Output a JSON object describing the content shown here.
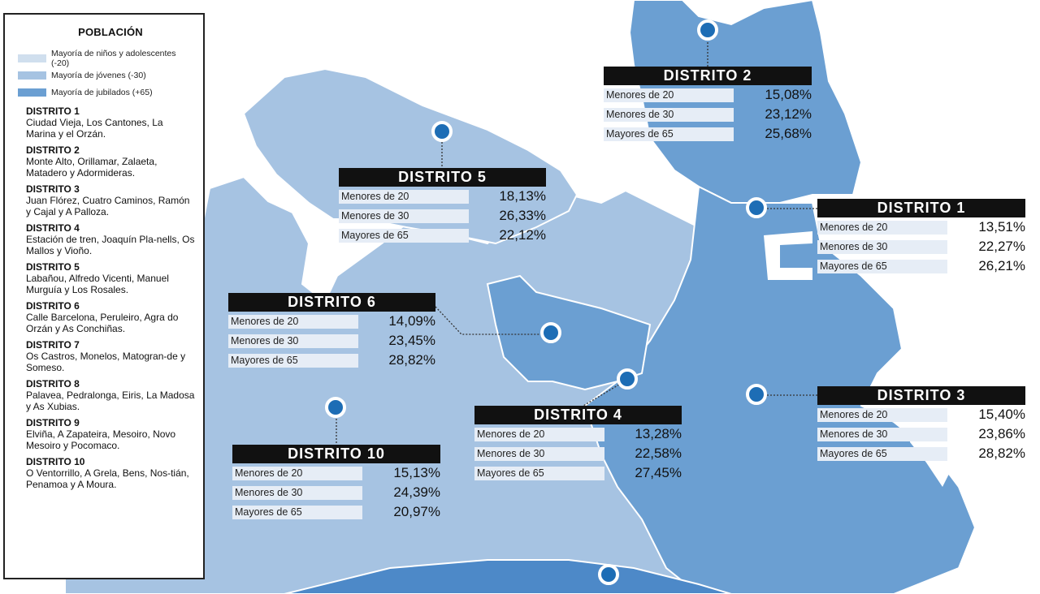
{
  "colors": {
    "kids": "#d0dfee",
    "youth": "#a6c3e2",
    "seniors": "#6b9fd2",
    "dark": "#4d89c8",
    "pin": "#1d6db5",
    "header": "#111111"
  },
  "legend": {
    "title": "POBLACIÓN",
    "keys": [
      {
        "label": "Mayoría de niños y adolescentes (-20)",
        "color": "#d0dfee"
      },
      {
        "label": "Mayoría de jóvenes (-30)",
        "color": "#a6c3e2"
      },
      {
        "label": "Mayoría de jubilados (+65)",
        "color": "#6b9fd2"
      }
    ],
    "districts": [
      {
        "name": "DISTRITO 1",
        "areas": "Ciudad Vieja, Los Cantones, La Marina y el Orzán."
      },
      {
        "name": "DISTRITO 2",
        "areas": "Monte Alto, Orillamar, Zalaeta, Matadero y Adormideras."
      },
      {
        "name": "DISTRITO 3",
        "areas": "Juan Flórez, Cuatro Caminos, Ramón y Cajal y A Palloza."
      },
      {
        "name": "DISTRITO 4",
        "areas": "Estación de tren, Joaquín Pla-nells, Os Mallos y Vioño."
      },
      {
        "name": "DISTRITO 5",
        "areas": "Labañou, Alfredo Vicenti, Manuel Murguía y Los Rosales."
      },
      {
        "name": "DISTRITO 6",
        "areas": "Calle Barcelona, Peruleiro, Agra do Orzán y As Conchiñas."
      },
      {
        "name": "DISTRITO 7",
        "areas": "Os Castros, Monelos, Matogran-de y Someso."
      },
      {
        "name": "DISTRITO 8",
        "areas": "Palavea, Pedralonga, Eiris, La Madosa y As Xubias."
      },
      {
        "name": "DISTRITO 9",
        "areas": "Elviña, A Zapateira, Mesoiro, Novo Mesoiro y Pocomaco."
      },
      {
        "name": "DISTRITO 10",
        "areas": "O Ventorrillo, A Grela, Bens, Nos-tián, Penamoa y A Moura."
      }
    ]
  },
  "cards": [
    {
      "title": "DISTRITO 2",
      "rows": [
        {
          "label": "Menores de 20",
          "value": "15,08%"
        },
        {
          "label": "Menores de 30",
          "value": "23,12%"
        },
        {
          "label": "Mayores de 65",
          "value": "25,68%"
        }
      ]
    },
    {
      "title": "DISTRITO 5",
      "rows": [
        {
          "label": "Menores de 20",
          "value": "18,13%"
        },
        {
          "label": "Menores de 30",
          "value": "26,33%"
        },
        {
          "label": "Mayores de 65",
          "value": "22,12%"
        }
      ]
    },
    {
      "title": "DISTRITO 1",
      "rows": [
        {
          "label": "Menores de 20",
          "value": "13,51%"
        },
        {
          "label": "Menores de 30",
          "value": "22,27%"
        },
        {
          "label": "Mayores de 65",
          "value": "26,21%"
        }
      ]
    },
    {
      "title": "DISTRITO 6",
      "rows": [
        {
          "label": "Menores de 20",
          "value": "14,09%"
        },
        {
          "label": "Menores de 30",
          "value": "23,45%"
        },
        {
          "label": "Mayores de 65",
          "value": "28,82%"
        }
      ]
    },
    {
      "title": "DISTRITO 3",
      "rows": [
        {
          "label": "Menores de 20",
          "value": "15,40%"
        },
        {
          "label": "Menores de 30",
          "value": "23,86%"
        },
        {
          "label": "Mayores de 65",
          "value": "28,82%"
        }
      ]
    },
    {
      "title": "DISTRITO 4",
      "rows": [
        {
          "label": "Menores de 20",
          "value": "13,28%"
        },
        {
          "label": "Menores de 30",
          "value": "22,58%"
        },
        {
          "label": "Mayores de 65",
          "value": "27,45%"
        }
      ]
    },
    {
      "title": "DISTRITO 10",
      "rows": [
        {
          "label": "Menores de 20",
          "value": "15,13%"
        },
        {
          "label": "Menores de 30",
          "value": "24,39%"
        },
        {
          "label": "Mayores de 65",
          "value": "20,97%"
        }
      ]
    }
  ]
}
